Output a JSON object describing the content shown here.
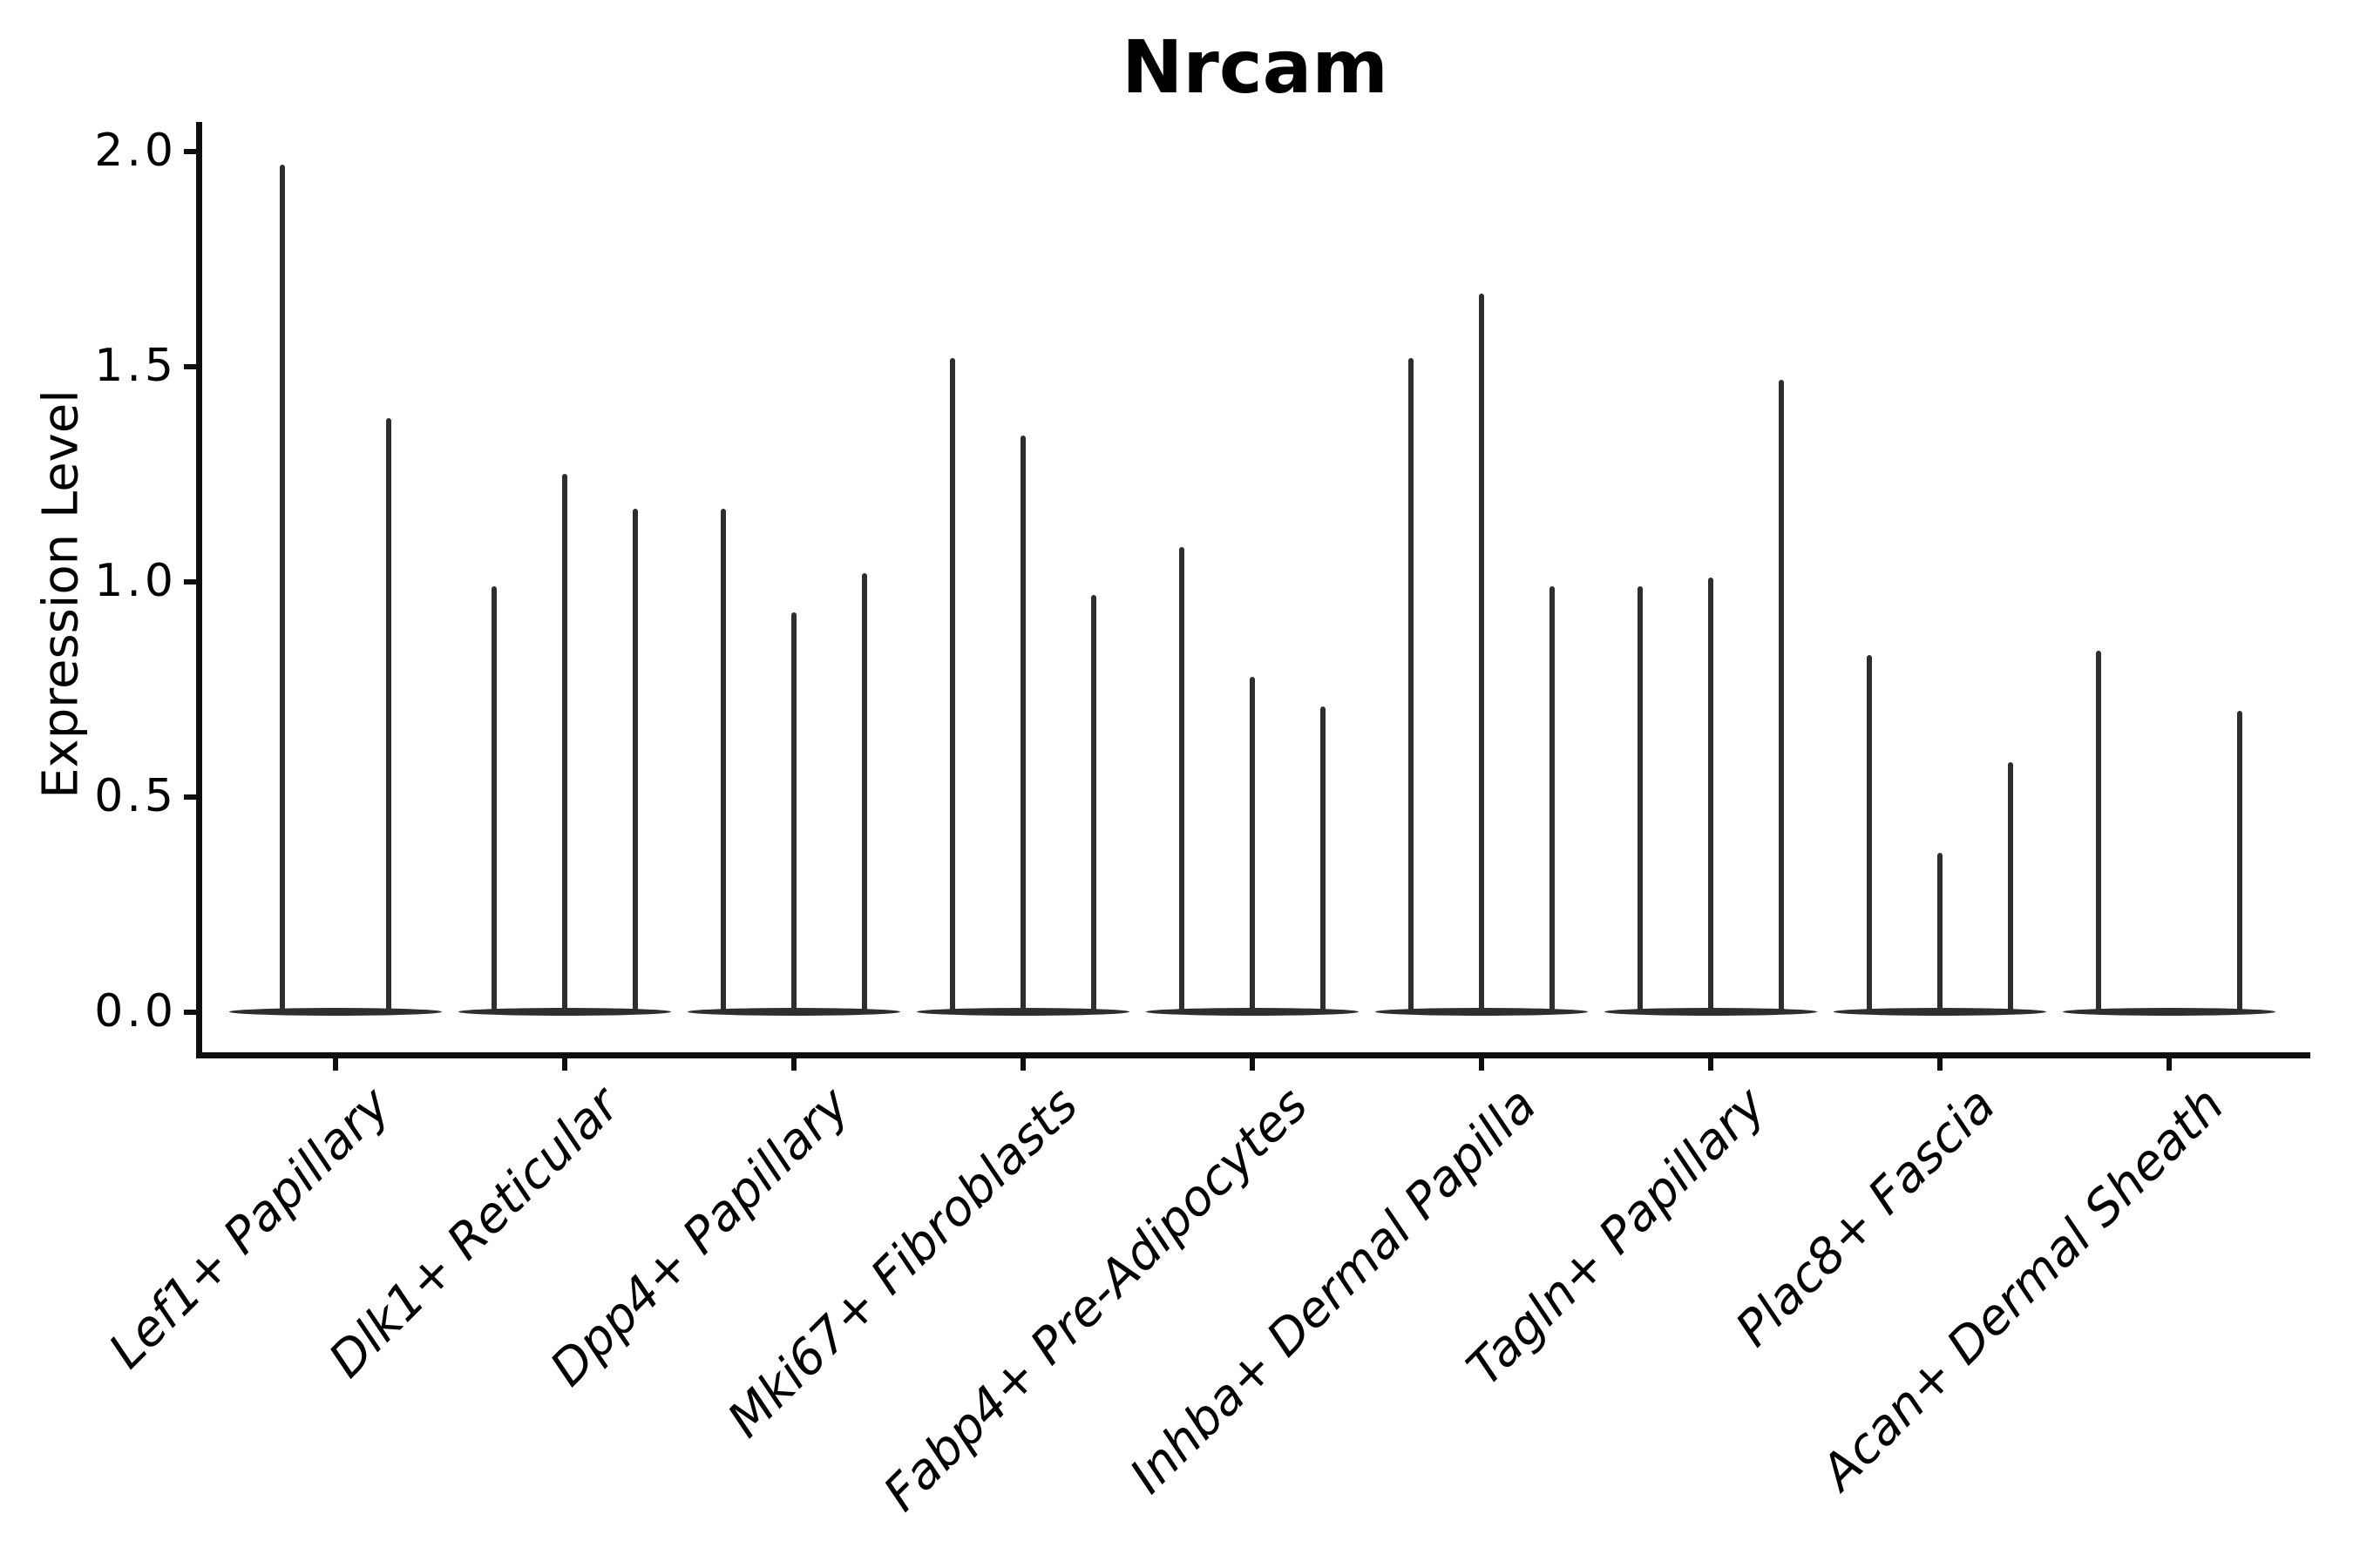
{
  "figure": {
    "title": "Nrcam",
    "ylabel": "Expression Level"
  },
  "chart_data": {
    "type": "violin",
    "title": "Nrcam",
    "xlabel": "",
    "ylabel": "Expression Level",
    "ylim": [
      0,
      2.07
    ],
    "grid": false,
    "legend": "none",
    "description": "Violin plot of Nrcam expression level per fibroblast subtype. Each category contains 2-3 extremely thin needle-like violins (split groups) sharing a wide flat base at expression 0; 'peak' is the expression value at each violin tip.",
    "yticks": [
      {
        "label": "0.0",
        "value": 0.0
      },
      {
        "label": "0.5",
        "value": 0.5
      },
      {
        "label": "1.0",
        "value": 1.0
      },
      {
        "label": "1.5",
        "value": 1.5
      },
      {
        "label": "2.0",
        "value": 2.0
      }
    ],
    "categories": [
      "Lef1+ Papillary",
      "Dlk1+ Reticular",
      "Dpp4+ Papillary",
      "Mki67+ Fibroblasts",
      "Fabp4+ Pre-Adipocytes",
      "Inhba+ Dermal Papilla",
      "Tagln+ Papillary",
      "Plac8+ Fascia",
      "Acan+ Dermal Sheath"
    ],
    "groups": [
      {
        "category": "Lef1+ Papillary",
        "slots": 2,
        "violins": [
          {
            "slot": 1,
            "peak": 1.97
          },
          {
            "slot": 2,
            "peak": 1.38
          }
        ]
      },
      {
        "category": "Dlk1+ Reticular",
        "slots": 3,
        "violins": [
          {
            "slot": 1,
            "peak": 0.99
          },
          {
            "slot": 2,
            "peak": 1.25
          },
          {
            "slot": 3,
            "peak": 1.17
          }
        ]
      },
      {
        "category": "Dpp4+ Papillary",
        "slots": 3,
        "violins": [
          {
            "slot": 1,
            "peak": 1.17
          },
          {
            "slot": 2,
            "peak": 0.93
          },
          {
            "slot": 3,
            "peak": 1.02
          }
        ]
      },
      {
        "category": "Mki67+ Fibroblasts",
        "slots": 3,
        "violins": [
          {
            "slot": 1,
            "peak": 1.52
          },
          {
            "slot": 2,
            "peak": 1.34
          },
          {
            "slot": 3,
            "peak": 0.97
          }
        ]
      },
      {
        "category": "Fabp4+ Pre-Adipocytes",
        "slots": 3,
        "violins": [
          {
            "slot": 1,
            "peak": 1.08
          },
          {
            "slot": 2,
            "peak": 0.78
          },
          {
            "slot": 3,
            "peak": 0.71
          }
        ]
      },
      {
        "category": "Inhba+ Dermal Papilla",
        "slots": 3,
        "violins": [
          {
            "slot": 1,
            "peak": 1.52
          },
          {
            "slot": 2,
            "peak": 1.67
          },
          {
            "slot": 3,
            "peak": 0.99
          }
        ]
      },
      {
        "category": "Tagln+ Papillary",
        "slots": 3,
        "violins": [
          {
            "slot": 1,
            "peak": 0.99
          },
          {
            "slot": 2,
            "peak": 1.01
          },
          {
            "slot": 3,
            "peak": 1.47
          }
        ]
      },
      {
        "category": "Plac8+ Fascia",
        "slots": 3,
        "violins": [
          {
            "slot": 1,
            "peak": 0.83
          },
          {
            "slot": 2,
            "peak": 0.37
          },
          {
            "slot": 3,
            "peak": 0.58
          }
        ]
      },
      {
        "category": "Acan+ Dermal Sheath",
        "slots": 3,
        "violins": [
          {
            "slot": 1,
            "peak": 0.84
          },
          {
            "slot": 3,
            "peak": 0.7
          }
        ]
      }
    ],
    "colors": {
      "violin": "#2e2e2e",
      "axis": "#0f0f0f",
      "text": "#000000",
      "background": "#ffffff"
    }
  }
}
